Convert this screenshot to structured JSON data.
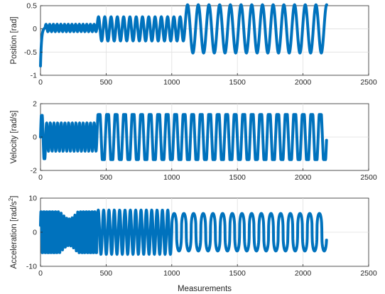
{
  "chart_data": [
    {
      "type": "line",
      "ylabel": "Position [rad]",
      "ylabel_sup": "",
      "xlabel": "",
      "xlim": [
        0,
        2500
      ],
      "ylim": [
        -1,
        0.5
      ],
      "xticks": [
        0,
        500,
        1000,
        1500,
        2000,
        2500
      ],
      "yticks": [
        -1,
        -0.5,
        0,
        0.5
      ],
      "xtick_labels": [
        "0",
        "500",
        "1000",
        "1500",
        "2000",
        "2500"
      ],
      "ytick_labels": [
        "-1",
        "-0.5",
        "0",
        "0.5"
      ],
      "grid": true,
      "series": [
        {
          "color": "#0072BD",
          "style": "dotted-markers",
          "segments": [
            {
              "type": "rise",
              "x": [
                0,
                35
              ],
              "y": [
                -0.8,
                0.02
              ]
            },
            {
              "type": "sine",
              "x": [
                35,
                430
              ],
              "periods": 14,
              "amplitude": 0.08,
              "offset": 0.02
            },
            {
              "type": "sine",
              "x": [
                430,
                1100
              ],
              "periods": 14,
              "amplitude": 0.26,
              "offset": 0.0
            },
            {
              "type": "sine",
              "x": [
                1100,
                2180
              ],
              "periods": 13.25,
              "amplitude": 0.52,
              "offset": 0.0
            }
          ]
        }
      ]
    },
    {
      "type": "line",
      "ylabel": "Velocity [rad/s]",
      "ylabel_sup": "",
      "xlabel": "",
      "xlim": [
        0,
        2500
      ],
      "ylim": [
        -2,
        2
      ],
      "xticks": [
        0,
        500,
        1000,
        1500,
        2000,
        2500
      ],
      "yticks": [
        -2,
        0,
        2
      ],
      "xtick_labels": [
        "0",
        "500",
        "1000",
        "1500",
        "2000",
        "2500"
      ],
      "ytick_labels": [
        "-2",
        "0",
        "2"
      ],
      "grid": true,
      "series": [
        {
          "color": "#0072BD",
          "style": "dotted-markers",
          "segments": [
            {
              "type": "clipped-sine",
              "x": [
                0,
                40
              ],
              "periods": 1,
              "amplitude": 1.6,
              "clip": 1.3,
              "offset": 0.0
            },
            {
              "type": "sine",
              "x": [
                40,
                430
              ],
              "periods": 14,
              "amplitude": 0.85,
              "offset": 0.0
            },
            {
              "type": "clipped-sine",
              "x": [
                430,
                2180
              ],
              "periods": 27,
              "amplitude": 2.0,
              "clip": 1.35,
              "offset": 0.0
            }
          ]
        }
      ]
    },
    {
      "type": "line",
      "ylabel": "Acceleration [rad/s",
      "ylabel_sup": "2",
      "ylabel_end": "]",
      "xlabel": "Measurements",
      "xlim": [
        0,
        2500
      ],
      "ylim": [
        -10,
        10
      ],
      "xticks": [
        0,
        500,
        1000,
        1500,
        2000,
        2500
      ],
      "yticks": [
        -10,
        0,
        10
      ],
      "xtick_labels": [
        "0",
        "500",
        "1000",
        "1500",
        "2000",
        "2500"
      ],
      "ytick_labels": [
        "-10",
        "0",
        "10"
      ],
      "grid": true,
      "series": [
        {
          "color": "#0072BD",
          "style": "dotted-markers",
          "segments": [
            {
              "type": "sine",
              "x": [
                0,
                430
              ],
              "periods": 20,
              "amplitude": 6,
              "offset": 0.0,
              "aliased": true
            },
            {
              "type": "sine",
              "x": [
                430,
                1000
              ],
              "periods": 14,
              "amplitude": 6.5,
              "offset": 0.0
            },
            {
              "type": "spiky",
              "x": [
                1000,
                2180
              ],
              "periods": 16,
              "amplitude": 5.5,
              "offset": 0.0
            }
          ]
        }
      ]
    }
  ]
}
